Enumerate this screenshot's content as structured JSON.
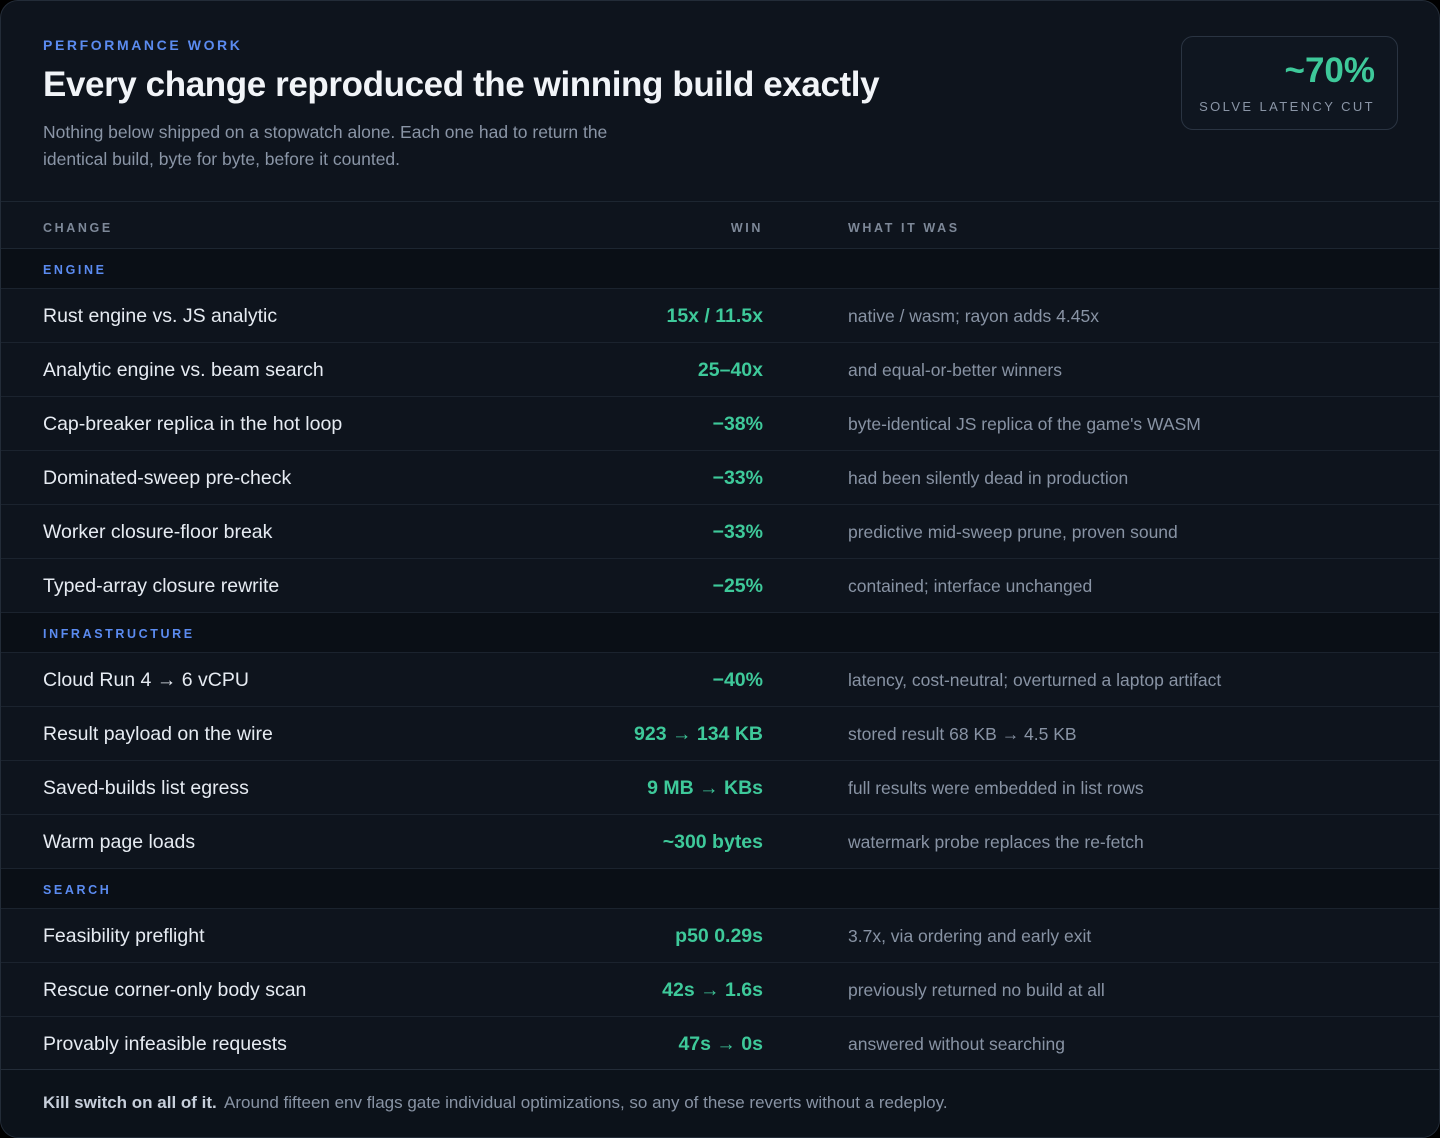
{
  "header": {
    "eyebrow": "PERFORMANCE WORK",
    "title": "Every change reproduced the winning build exactly",
    "subtitle": "Nothing below shipped on a stopwatch alone. Each one had to return the identical build, byte for byte, before it counted.",
    "stat": {
      "value": "~70%",
      "label": "SOLVE LATENCY CUT"
    }
  },
  "table": {
    "columns": {
      "change": "CHANGE",
      "win": "WIN",
      "what": "WHAT IT WAS"
    },
    "sections": [
      {
        "label": "ENGINE",
        "rows": [
          {
            "change": "Rust engine vs. JS analytic",
            "win": "15x / 11.5x",
            "what": "native / wasm; rayon adds 4.45x"
          },
          {
            "change": "Analytic engine vs. beam search",
            "win": "25–40x",
            "what": "and equal-or-better winners"
          },
          {
            "change": "Cap-breaker replica in the hot loop",
            "win": "−38%",
            "what": "byte-identical JS replica of the game's WASM"
          },
          {
            "change": "Dominated-sweep pre-check",
            "win": "−33%",
            "what": "had been silently dead in production"
          },
          {
            "change": "Worker closure-floor break",
            "win": "−33%",
            "what": "predictive mid-sweep prune, proven sound"
          },
          {
            "change": "Typed-array closure rewrite",
            "win": "−25%",
            "what": "contained; interface unchanged"
          }
        ]
      },
      {
        "label": "INFRASTRUCTURE",
        "rows": [
          {
            "change": "Cloud Run 4 → 6 vCPU",
            "win": "−40%",
            "what": "latency, cost-neutral; overturned a laptop artifact"
          },
          {
            "change": "Result payload on the wire",
            "win": "923 → 134 KB",
            "what": "stored result 68 KB → 4.5 KB"
          },
          {
            "change": "Saved-builds list egress",
            "win": "9 MB → KBs",
            "what": "full results were embedded in list rows"
          },
          {
            "change": "Warm page loads",
            "win": "~300 bytes",
            "what": "watermark probe replaces the re-fetch"
          }
        ]
      },
      {
        "label": "SEARCH",
        "rows": [
          {
            "change": "Feasibility preflight",
            "win": "p50 0.29s",
            "what": "3.7x, via ordering and early exit"
          },
          {
            "change": "Rescue corner-only body scan",
            "win": "42s → 1.6s",
            "what": "previously returned no build at all"
          },
          {
            "change": "Provably infeasible requests",
            "win": "47s → 0s",
            "what": "answered without searching"
          }
        ]
      }
    ]
  },
  "footer": {
    "strong": "Kill switch on all of it.",
    "text": "Around fifteen env flags gate individual optimizations, so any of these reverts without a redeploy."
  }
}
